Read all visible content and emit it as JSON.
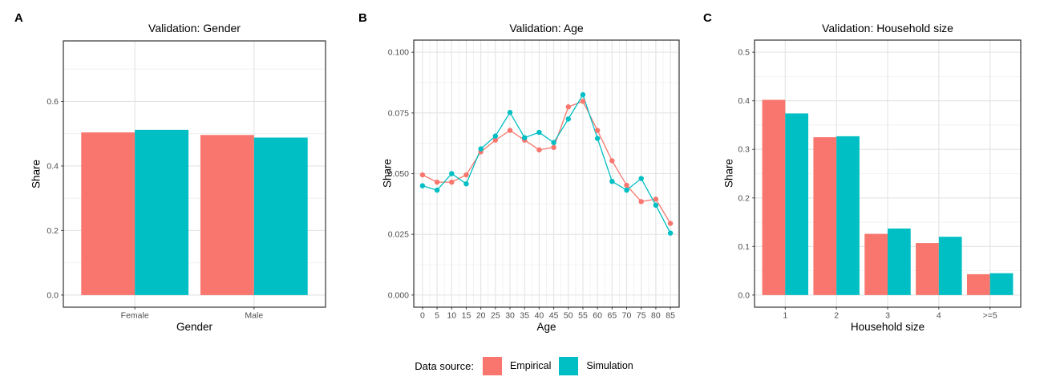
{
  "legend": {
    "title": "Data source:",
    "entries": [
      {
        "label": "Empirical",
        "color": "#F8766D"
      },
      {
        "label": "Simulation",
        "color": "#00BFC4"
      }
    ]
  },
  "chart_data": [
    {
      "type": "bar",
      "tag": "A",
      "title": "Validation: Gender",
      "xlabel": "Gender",
      "ylabel": "Share",
      "categories": [
        "Female",
        "Male"
      ],
      "series": [
        {
          "name": "Empirical",
          "color": "#F8766D",
          "values": [
            0.504,
            0.496
          ]
        },
        {
          "name": "Simulation",
          "color": "#00BFC4",
          "values": [
            0.512,
            0.488
          ]
        }
      ],
      "ylim": [
        0,
        0.75
      ],
      "yticks": [
        0.0,
        0.2,
        0.4,
        0.6
      ],
      "ytick_labels": [
        "0.0",
        "0.2",
        "0.4",
        "0.6"
      ],
      "grid": "major+minor",
      "legend_position": "bottom-shared"
    },
    {
      "type": "line",
      "tag": "B",
      "title": "Validation: Age",
      "xlabel": "Age",
      "ylabel": "Share",
      "x": [
        0,
        5,
        10,
        15,
        20,
        25,
        30,
        35,
        40,
        45,
        50,
        55,
        60,
        65,
        70,
        75,
        80,
        85
      ],
      "series": [
        {
          "name": "Empirical",
          "color": "#F8766D",
          "values": [
            0.0495,
            0.0465,
            0.0465,
            0.0495,
            0.059,
            0.0638,
            0.0678,
            0.0638,
            0.0598,
            0.0608,
            0.0775,
            0.0798,
            0.0678,
            0.0553,
            0.0452,
            0.0385,
            0.0395,
            0.0295
          ]
        },
        {
          "name": "Simulation",
          "color": "#00BFC4",
          "values": [
            0.045,
            0.0432,
            0.05,
            0.0458,
            0.0602,
            0.0655,
            0.0752,
            0.0648,
            0.067,
            0.0628,
            0.0725,
            0.0825,
            0.0645,
            0.0468,
            0.0432,
            0.048,
            0.037,
            0.0255
          ]
        }
      ],
      "xlim": [
        -3,
        88
      ],
      "xticks": [
        0,
        5,
        10,
        15,
        20,
        25,
        30,
        35,
        40,
        45,
        50,
        55,
        60,
        65,
        70,
        75,
        80,
        85
      ],
      "xtick_labels": [
        "0",
        "5",
        "10",
        "15",
        "20",
        "25",
        "30",
        "35",
        "40",
        "45",
        "50",
        "55",
        "60",
        "65",
        "70",
        "75",
        "80",
        "85"
      ],
      "ylim": [
        0,
        0.1
      ],
      "yticks": [
        0.0,
        0.025,
        0.05,
        0.075,
        0.1
      ],
      "ytick_labels": [
        "0.000",
        "0.025",
        "0.050",
        "0.075",
        "0.100"
      ],
      "grid": "major+minor",
      "legend_position": "bottom-shared"
    },
    {
      "type": "bar",
      "tag": "C",
      "title": "Validation: Household size",
      "xlabel": "Household size",
      "ylabel": "Share",
      "categories": [
        "1",
        "2",
        "3",
        "4",
        ">=5"
      ],
      "series": [
        {
          "name": "Empirical",
          "color": "#F8766D",
          "values": [
            0.402,
            0.325,
            0.126,
            0.107,
            0.043
          ]
        },
        {
          "name": "Simulation",
          "color": "#00BFC4",
          "values": [
            0.374,
            0.327,
            0.137,
            0.12,
            0.045
          ]
        }
      ],
      "ylim": [
        0,
        0.5
      ],
      "yticks": [
        0.0,
        0.1,
        0.2,
        0.3,
        0.4,
        0.5
      ],
      "ytick_labels": [
        "0.0",
        "0.1",
        "0.2",
        "0.3",
        "0.4",
        "0.5"
      ],
      "grid": "major+minor",
      "legend_position": "bottom-shared"
    }
  ]
}
